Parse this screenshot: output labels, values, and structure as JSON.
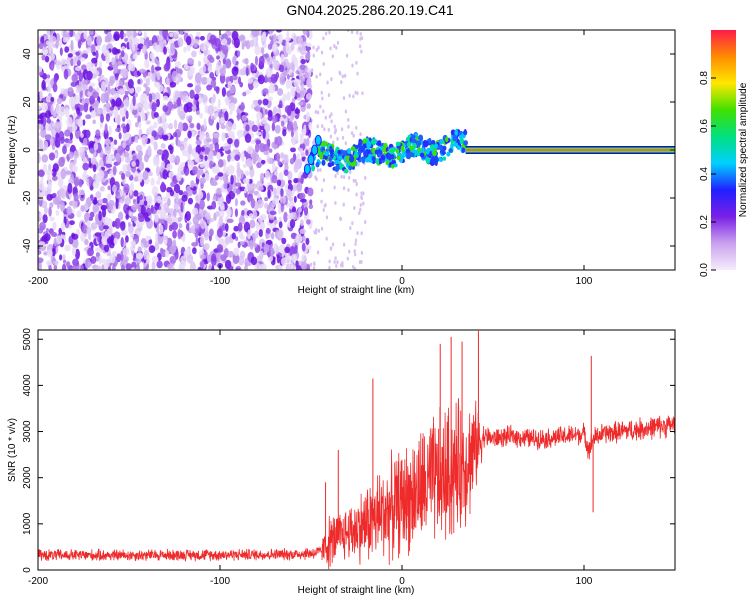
{
  "title": "GN04.2025.286.20.19.C41",
  "colors": {
    "signal": "#ee2a2a",
    "scatter": "#7a20e6",
    "frame": "#000000"
  },
  "chart_data": [
    {
      "type": "heatmap",
      "title": "GN04.2025.286.20.19.C41",
      "xlabel": "Height of straight line (km)",
      "ylabel": "Frequency (Hz)",
      "xlim": [
        -200,
        150
      ],
      "ylim": [
        -50,
        50
      ],
      "xticks": [
        -200,
        -100,
        0,
        100
      ],
      "yticks": [
        -40,
        -20,
        0,
        20,
        40
      ],
      "colorbar": {
        "label": "Normalized spectral amplitude",
        "range": [
          0,
          1
        ],
        "ticks": [
          "0.0",
          "0.2",
          "0.4",
          "0.6",
          "0.8"
        ],
        "colors": [
          "#f6ecfb",
          "#c9a2ee",
          "#7a20e6",
          "#2020ff",
          "#00d0ff",
          "#00e080",
          "#40e000",
          "#ffe800",
          "#ff8c00",
          "#ff1a4a"
        ]
      },
      "features": [
        {
          "name": "noise-region",
          "x_range": [
            -200,
            -50
          ],
          "y_range": [
            -50,
            50
          ]
        },
        {
          "name": "transition-band",
          "x_range": [
            -50,
            35
          ],
          "y_range": [
            -12,
            8
          ]
        },
        {
          "name": "carrier-line",
          "x_range": [
            35,
            150
          ],
          "frequency": 0
        }
      ]
    },
    {
      "type": "line",
      "xlabel": "Height of straight line (km)",
      "ylabel": "SNR (10 * v/v)",
      "xlim": [
        -200,
        150
      ],
      "ylim": [
        0,
        5200
      ],
      "xticks": [
        -200,
        -100,
        0,
        100
      ],
      "yticks": [
        0,
        1000,
        2000,
        3000,
        4000,
        5000
      ],
      "series": [
        {
          "name": "SNR",
          "x": [
            -200,
            -150,
            -100,
            -60,
            -45,
            -40,
            -35,
            -30,
            -25,
            -20,
            -15,
            -10,
            -5,
            0,
            5,
            10,
            15,
            20,
            25,
            30,
            35,
            38,
            42,
            45,
            50,
            60,
            70,
            80,
            90,
            100,
            103,
            105,
            110,
            120,
            130,
            140,
            150
          ],
          "mean": [
            320,
            320,
            330,
            340,
            380,
            600,
            700,
            820,
            900,
            1000,
            1100,
            1250,
            1350,
            1500,
            1600,
            1750,
            1850,
            1950,
            2050,
            2200,
            2350,
            2500,
            2750,
            2900,
            2850,
            2900,
            2850,
            2850,
            2900,
            2950,
            2600,
            2850,
            2950,
            3000,
            3050,
            3100,
            3150
          ],
          "spread": [
            150,
            150,
            150,
            150,
            180,
            700,
            650,
            700,
            850,
            1000,
            1150,
            1250,
            1300,
            1350,
            1450,
            1550,
            1650,
            1750,
            1800,
            1700,
            1600,
            1500,
            900,
            300,
            260,
            260,
            260,
            260,
            270,
            270,
            300,
            280,
            270,
            280,
            290,
            300,
            300
          ],
          "spikes": [
            {
              "x": -42,
              "y": 1900
            },
            {
              "x": -35,
              "y": 2600
            },
            {
              "x": -16,
              "y": 4150
            },
            {
              "x": 21,
              "y": 4900
            },
            {
              "x": 27,
              "y": 5050
            },
            {
              "x": 33,
              "y": 4950
            },
            {
              "x": 42,
              "y": 5180
            },
            {
              "x": 104,
              "y": 4640
            },
            {
              "x": 105,
              "y": 1250
            }
          ]
        }
      ]
    }
  ]
}
